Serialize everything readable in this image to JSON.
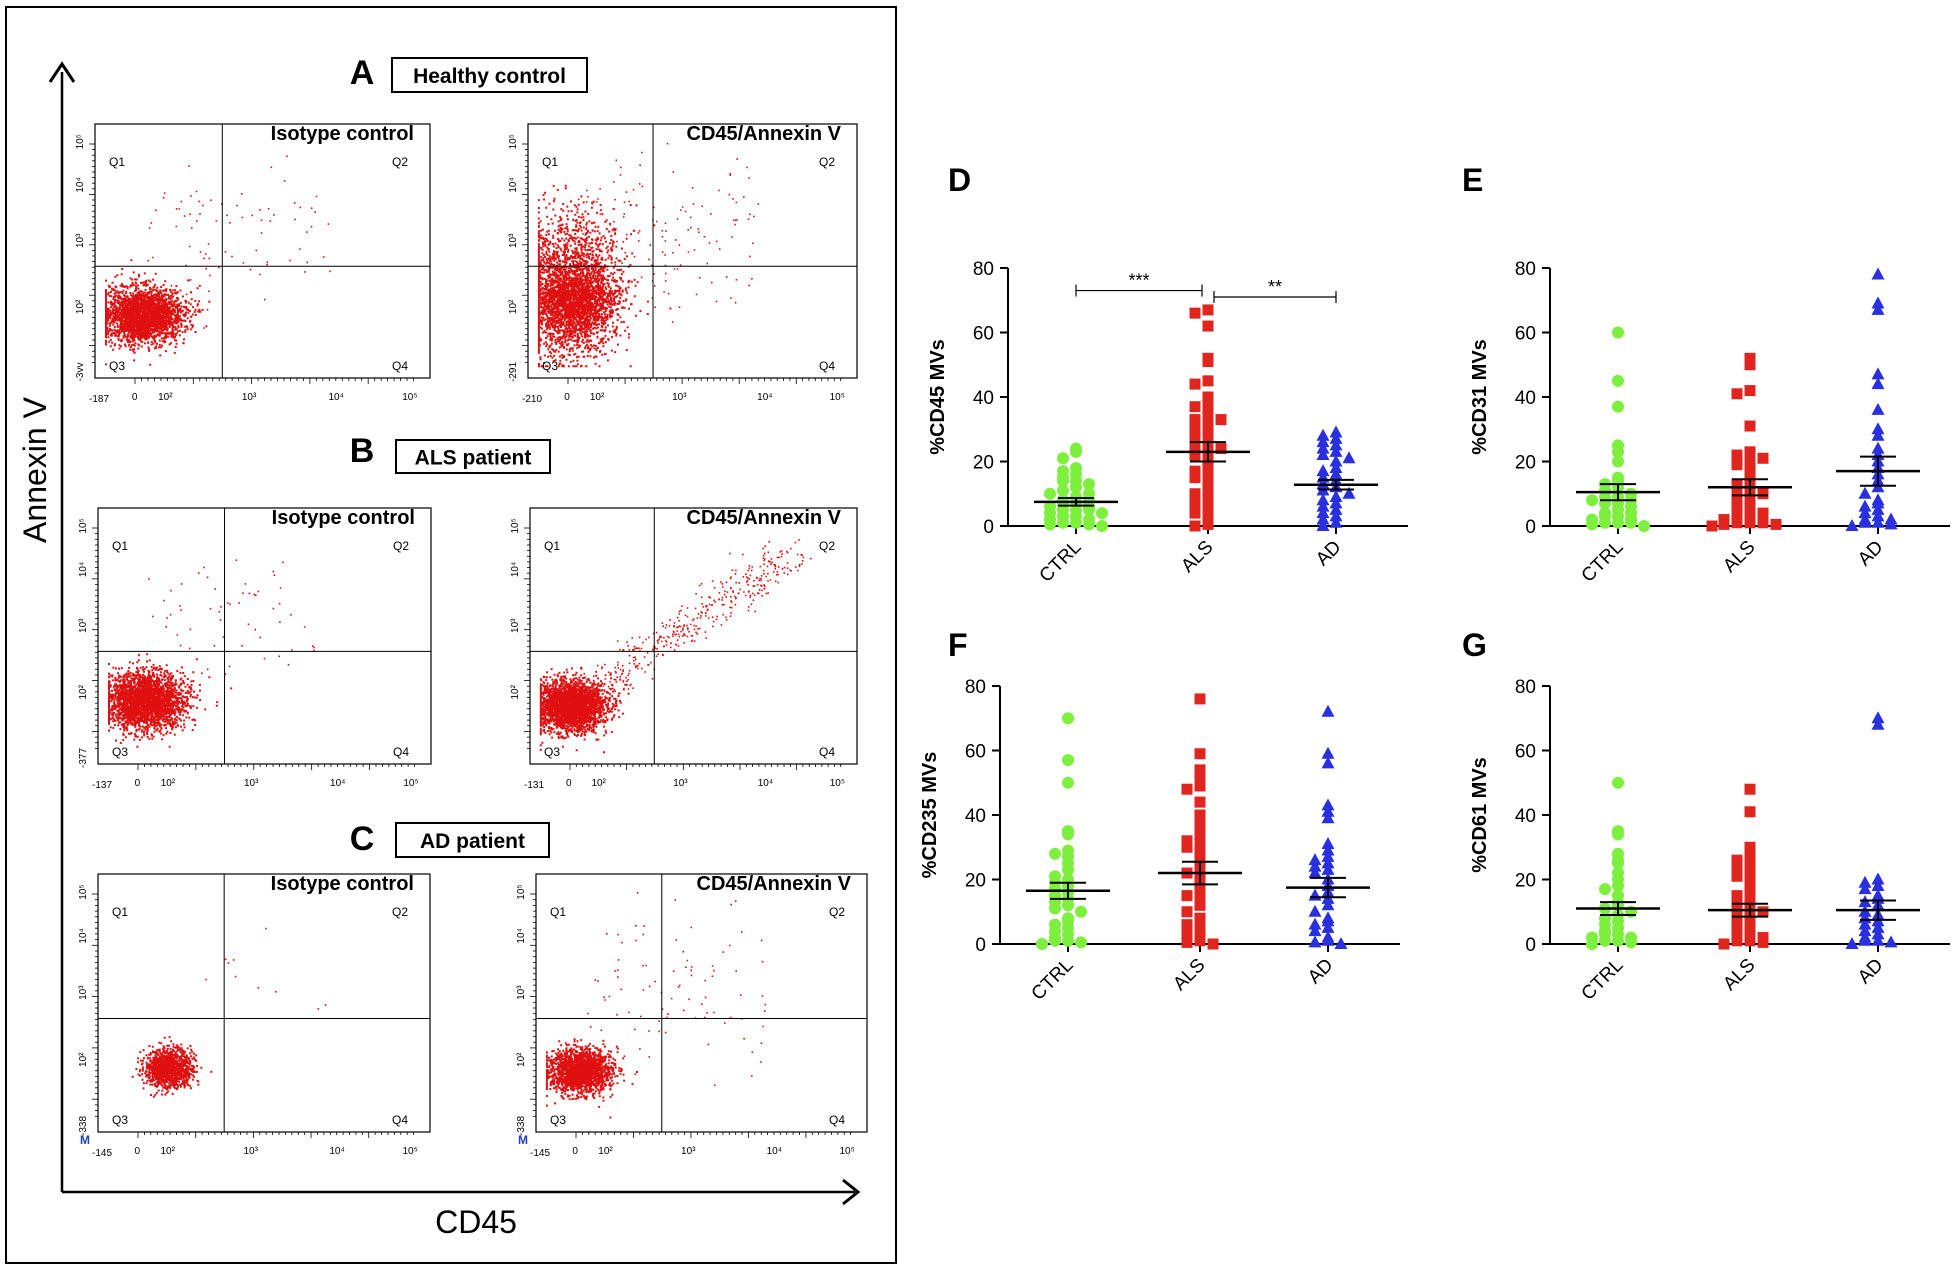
{
  "colors": {
    "ctrl": "#7cf03c",
    "als": "#e0251f",
    "ad": "#2830e0",
    "flow": "#e01010",
    "axis": "#000000"
  },
  "left_panel": {
    "y_axis_label": "Annexin V",
    "x_axis_label": "CD45",
    "quadrant_labels": {
      "q1": "Q1",
      "q2": "Q2",
      "q3": "Q3",
      "q4": "Q4"
    },
    "decade_labels": [
      "10²",
      "10³",
      "10⁴",
      "10⁵"
    ],
    "panels": [
      {
        "letter": "A",
        "group": "Healthy control",
        "plots": [
          {
            "title": "Isotype control",
            "xmin": "-187",
            "ymin": "-3vv"
          },
          {
            "title": "CD45/Annexin V",
            "xmin": "-210",
            "ymin": "-291"
          }
        ]
      },
      {
        "letter": "B",
        "group": "ALS patient",
        "plots": [
          {
            "title": "Isotype control",
            "xmin": "-137",
            "ymin": "-377"
          },
          {
            "title": "CD45/Annexin V",
            "xmin": "-131",
            "ymin": ""
          }
        ]
      },
      {
        "letter": "C",
        "group": "AD patient",
        "plots": [
          {
            "title": "Isotype control",
            "xmin": "-145",
            "ymin": "-338"
          },
          {
            "title": "CD45/Annexin V",
            "xmin": "-145",
            "ymin": "-338"
          }
        ]
      }
    ],
    "marker_letter": "M"
  },
  "chart_data": [
    {
      "panel": "D",
      "type": "scatter",
      "ylabel": "%CD45 MVs",
      "categories": [
        "CTRL",
        "ALS",
        "AD"
      ],
      "ylim": [
        0,
        80
      ],
      "yticks": [
        0,
        20,
        40,
        60,
        80
      ],
      "means": [
        7.5,
        23,
        12.8
      ],
      "sem": [
        1.2,
        3,
        1.5
      ],
      "significance": [
        {
          "from": "CTRL",
          "to": "ALS",
          "label": "***",
          "y": 73
        },
        {
          "from": "ALS",
          "to": "AD",
          "label": "**",
          "y": 71
        }
      ],
      "series": [
        {
          "name": "CTRL",
          "marker": "circle",
          "values": [
            24,
            23,
            21,
            18,
            17,
            16,
            15,
            14,
            14,
            13,
            12,
            11,
            10,
            10,
            9,
            8,
            8,
            7,
            7,
            6,
            6,
            5,
            5,
            5,
            4,
            4,
            3,
            3,
            2,
            2,
            1,
            1,
            0.5,
            0.5,
            0
          ]
        },
        {
          "name": "ALS",
          "marker": "square",
          "values": [
            67,
            66,
            62,
            52,
            51,
            45,
            44,
            40,
            38,
            37,
            36,
            34,
            33,
            33,
            31,
            30,
            29,
            28,
            27,
            26,
            25,
            25,
            24,
            23,
            22,
            20,
            18,
            17,
            16,
            15,
            14,
            12,
            10,
            9,
            8,
            7,
            6,
            5,
            4,
            2,
            0.5,
            0
          ]
        },
        {
          "name": "AD",
          "marker": "triangle",
          "values": [
            29,
            28,
            27,
            26,
            25,
            24,
            23,
            22,
            21,
            20,
            18,
            17,
            16,
            15,
            14,
            13,
            12,
            11,
            10,
            9,
            8,
            7,
            6,
            5,
            4,
            3,
            2,
            1,
            0
          ]
        }
      ]
    },
    {
      "panel": "E",
      "type": "scatter",
      "ylabel": "%CD31 MVs",
      "categories": [
        "CTRL",
        "ALS",
        "AD"
      ],
      "ylim": [
        0,
        80
      ],
      "yticks": [
        0,
        20,
        40,
        60,
        80
      ],
      "means": [
        10.5,
        12,
        17
      ],
      "sem": [
        2.5,
        2.5,
        4.5
      ],
      "series": [
        {
          "name": "CTRL",
          "marker": "circle",
          "values": [
            60,
            45,
            37,
            25,
            23,
            20,
            15,
            14,
            13,
            12,
            11,
            10,
            9,
            9,
            8,
            8,
            7,
            7,
            6,
            5,
            4,
            4,
            3,
            3,
            2,
            2,
            1,
            1,
            1,
            0.5,
            0
          ]
        },
        {
          "name": "ALS",
          "marker": "square",
          "values": [
            52,
            50,
            42,
            41,
            31,
            23,
            22,
            21,
            20,
            19,
            17,
            15,
            14,
            13,
            12,
            11,
            10,
            9,
            8,
            7,
            6,
            5,
            5,
            4,
            3,
            3,
            2,
            2,
            1,
            1,
            1,
            0.5,
            0.5,
            0
          ]
        },
        {
          "name": "AD",
          "marker": "triangle",
          "values": [
            78,
            69,
            67,
            47,
            44,
            36,
            30,
            28,
            24,
            22,
            20,
            18,
            16,
            14,
            12,
            10,
            8,
            7,
            6,
            5,
            4,
            3,
            2,
            2,
            1,
            1,
            0.5,
            0
          ]
        }
      ]
    },
    {
      "panel": "F",
      "type": "scatter",
      "ylabel": "%CD235 MVs",
      "categories": [
        "CTRL",
        "ALS",
        "AD"
      ],
      "ylim": [
        0,
        80
      ],
      "yticks": [
        0,
        20,
        40,
        60,
        80
      ],
      "means": [
        16.5,
        22,
        17.5
      ],
      "sem": [
        2.5,
        3.5,
        3
      ],
      "series": [
        {
          "name": "CTRL",
          "marker": "circle",
          "values": [
            70,
            57,
            50,
            35,
            34,
            29,
            28,
            27,
            25,
            23,
            21,
            20,
            19,
            18,
            17,
            16,
            15,
            14,
            13,
            12,
            11,
            10,
            8,
            7,
            6,
            5,
            4,
            3,
            2,
            1,
            1,
            0.5,
            0
          ]
        },
        {
          "name": "ALS",
          "marker": "square",
          "values": [
            76,
            59,
            54,
            52,
            50,
            49,
            48,
            44,
            40,
            37,
            36,
            33,
            32,
            31,
            30,
            28,
            27,
            25,
            23,
            22,
            20,
            18,
            16,
            15,
            14,
            12,
            10,
            8,
            7,
            6,
            5,
            4,
            3,
            2,
            1,
            0.5,
            0
          ]
        },
        {
          "name": "AD",
          "marker": "triangle",
          "values": [
            72,
            59,
            56,
            43,
            41,
            39,
            31,
            29,
            27,
            26,
            25,
            24,
            23,
            22,
            20,
            18,
            16,
            15,
            14,
            12,
            10,
            8,
            7,
            6,
            5,
            4,
            2,
            1,
            0.5,
            0
          ]
        }
      ]
    },
    {
      "panel": "G",
      "type": "scatter",
      "ylabel": "%CD61 MVs",
      "categories": [
        "CTRL",
        "ALS",
        "AD"
      ],
      "ylim": [
        0,
        80
      ],
      "yticks": [
        0,
        20,
        40,
        60,
        80
      ],
      "means": [
        11,
        10.5,
        10.5
      ],
      "sem": [
        2,
        2,
        3
      ],
      "series": [
        {
          "name": "CTRL",
          "marker": "circle",
          "values": [
            50,
            35,
            34,
            28,
            26,
            25,
            22,
            20,
            18,
            17,
            15,
            13,
            12,
            11,
            10,
            9,
            8,
            7,
            6,
            5,
            4,
            3,
            3,
            2,
            2,
            1,
            1,
            0.5,
            0
          ]
        },
        {
          "name": "ALS",
          "marker": "square",
          "values": [
            48,
            41,
            30,
            28,
            27,
            26,
            25,
            24,
            22,
            21,
            20,
            18,
            16,
            15,
            14,
            13,
            12,
            11,
            10,
            9,
            8,
            7,
            6,
            5,
            4,
            3,
            2,
            2,
            1,
            1,
            0.5,
            0
          ]
        },
        {
          "name": "AD",
          "marker": "triangle",
          "values": [
            70,
            68,
            20,
            19,
            18,
            17,
            15,
            14,
            13,
            12,
            10,
            9,
            8,
            7,
            6,
            5,
            4,
            3,
            2,
            1,
            1,
            0.5,
            0
          ]
        }
      ]
    }
  ]
}
